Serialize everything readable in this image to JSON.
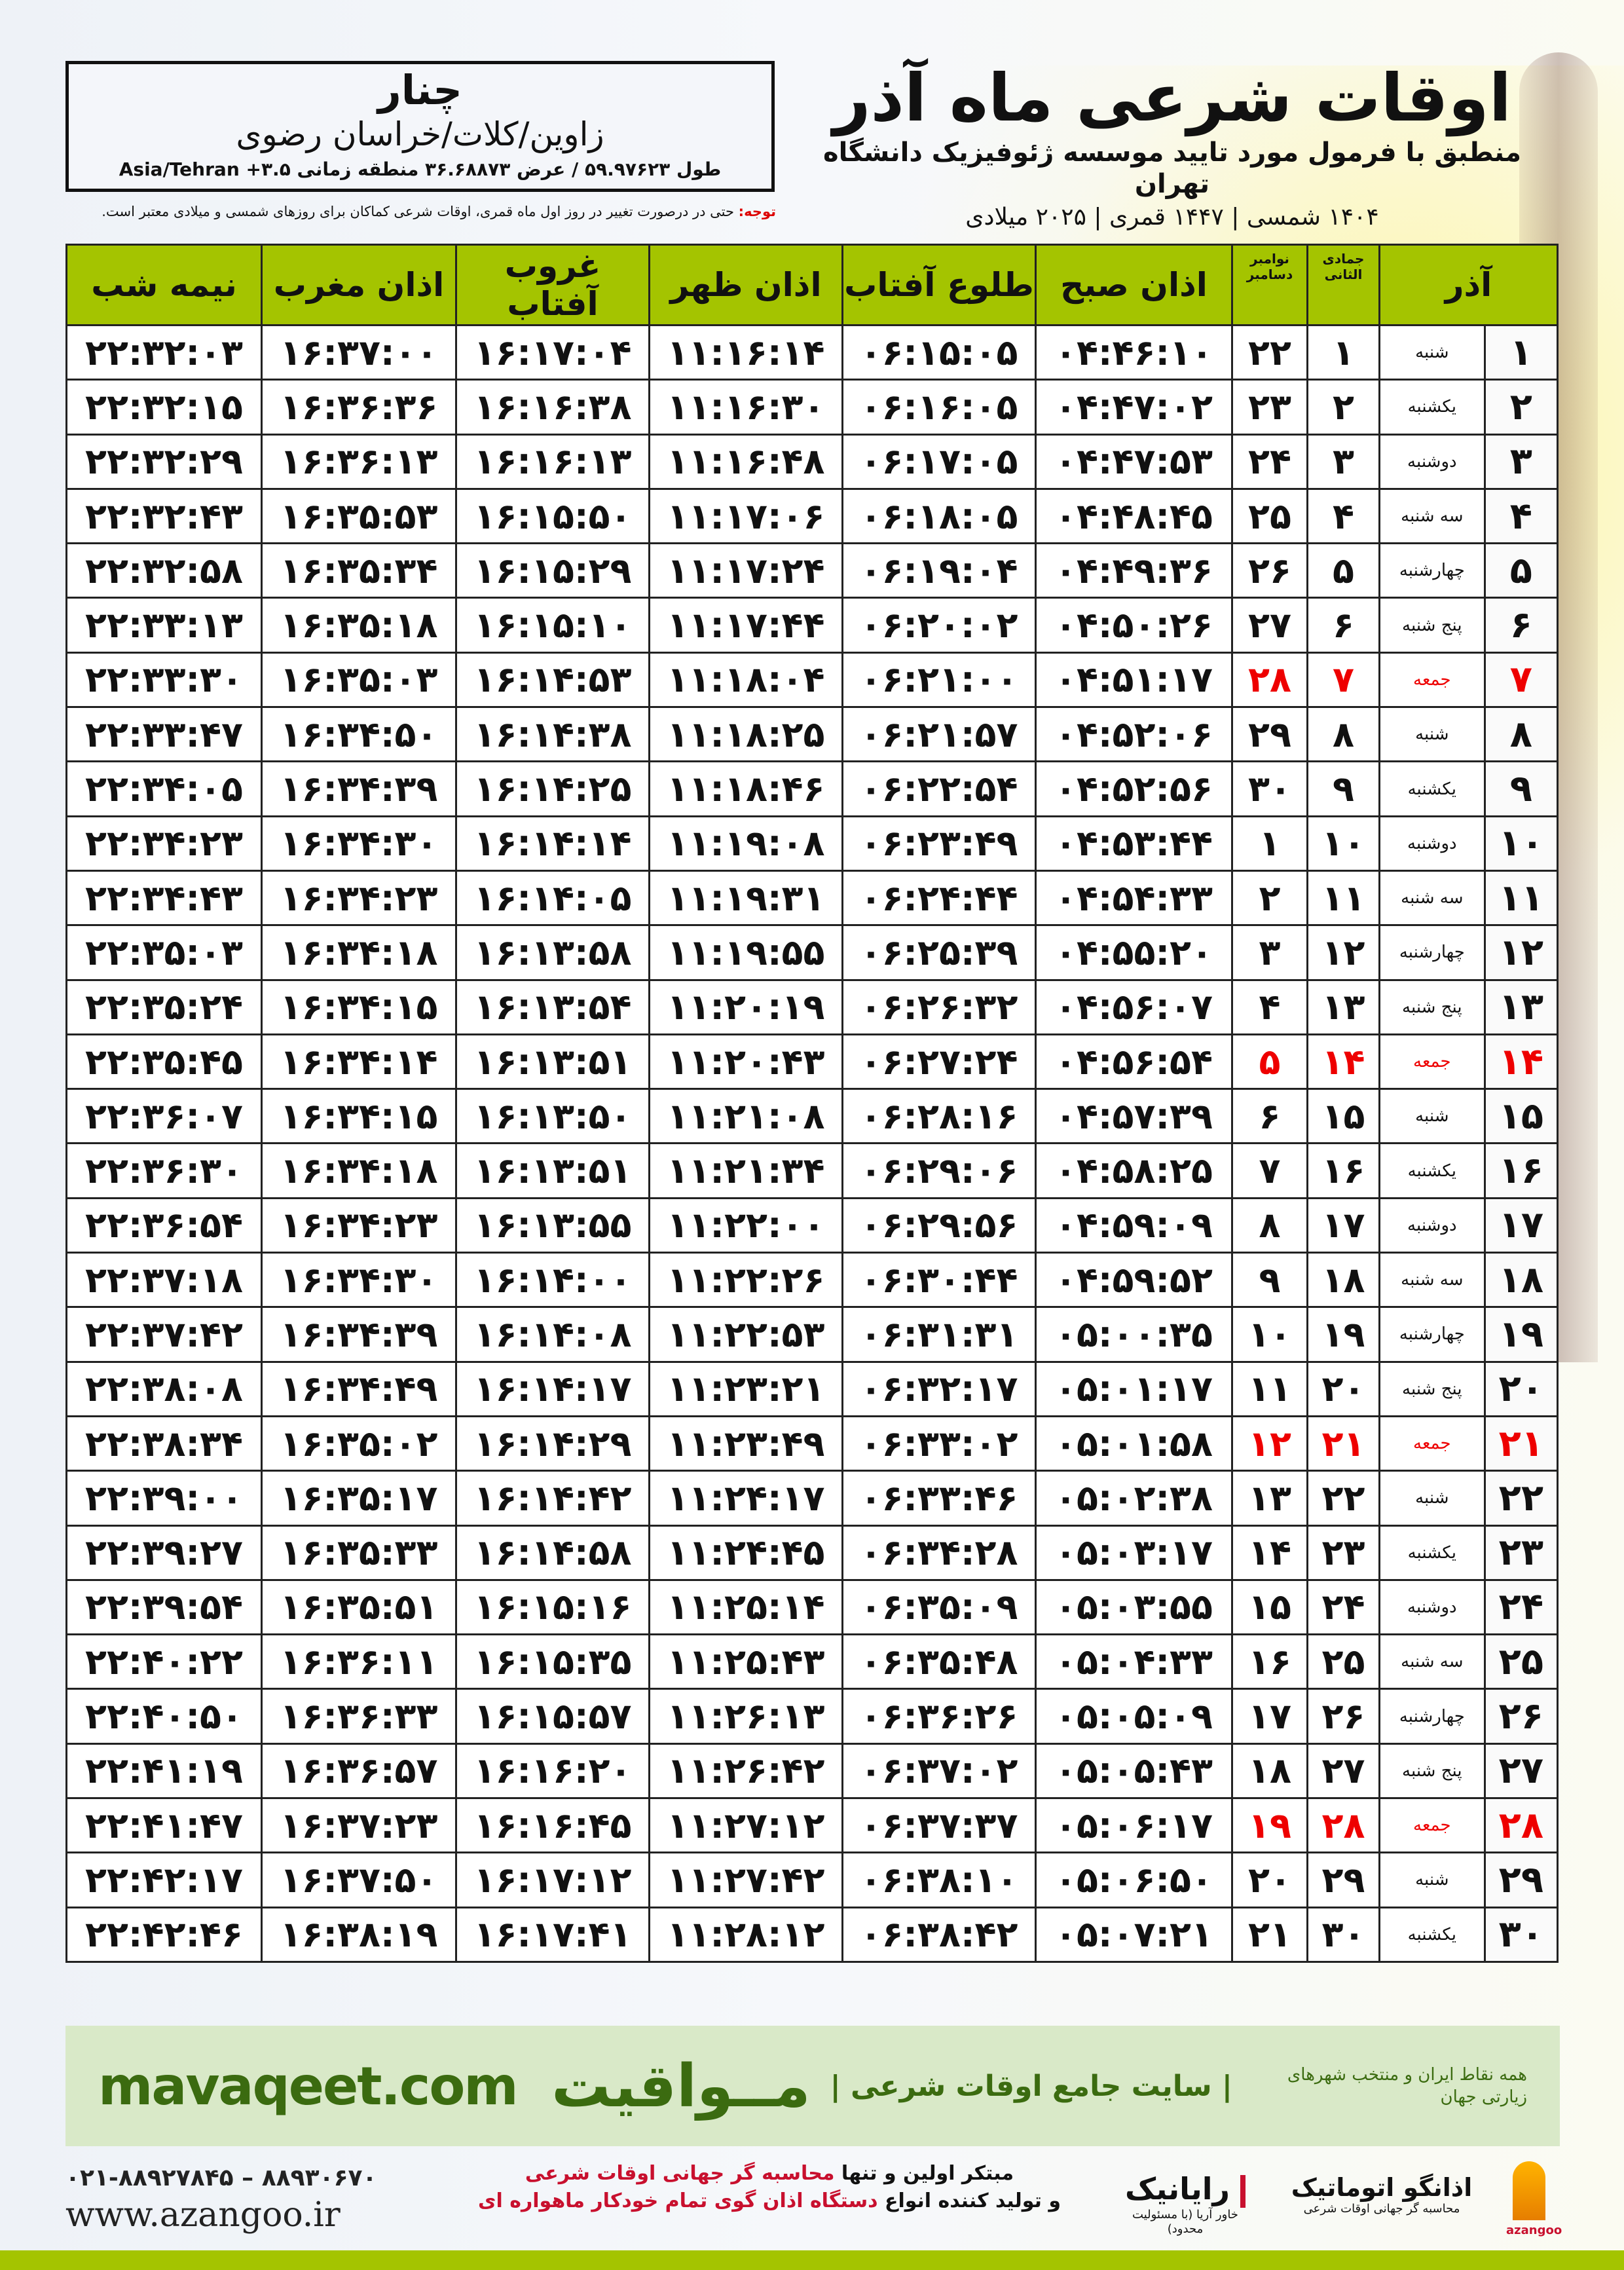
{
  "location": {
    "city": "چنار",
    "region": "زاوین/کلات/خراسان رضوی",
    "coords": "طول ۵۹.۹۷۶۲۳ / عرض ۳۶.۶۸۸۷۳ منطقه زمانی ۳.۵+ Asia/Tehran"
  },
  "header": {
    "title": "اوقات شرعی ماه آذر",
    "subtitle": "منطبق با فرمول مورد تایید موسسه ژئوفیزیک دانشگاه تهران",
    "years": "۱۴۰۴ شمسی | ۱۴۴۷ قمری | ۲۰۲۵ میلادی"
  },
  "note": {
    "label": "توجه:",
    "text": " حتی در درصورت تغییر در روز اول ماه قمری، اوقات شرعی کماکان برای روزهای شمسی و میلادی معتبر است."
  },
  "columns": {
    "month": "آذر",
    "hijri": "جمادی الثانی",
    "gregorian": "نوامبر دسامبر",
    "fajr": "اذان صبح",
    "sunrise": "طلوع آفتاب",
    "dhuhr": "اذان ظهر",
    "sunset": "غروب آفتاب",
    "maghrib": "اذان مغرب",
    "midnight": "نیمه شب"
  },
  "colors": {
    "header": "#a4c400",
    "holiday": "#e00000",
    "footer": "#d9e9c8",
    "brand": "#3b6b10"
  },
  "rows": [
    [
      "۱",
      "شنبه",
      "۱",
      "۲۲",
      "۰۴:۴۶:۱۰",
      "۰۶:۱۵:۰۵",
      "۱۱:۱۶:۱۴",
      "۱۶:۱۷:۰۴",
      "۱۶:۳۷:۰۰",
      "۲۲:۳۲:۰۳"
    ],
    [
      "۲",
      "یکشنبه",
      "۲",
      "۲۳",
      "۰۴:۴۷:۰۲",
      "۰۶:۱۶:۰۵",
      "۱۱:۱۶:۳۰",
      "۱۶:۱۶:۳۸",
      "۱۶:۳۶:۳۶",
      "۲۲:۳۲:۱۵"
    ],
    [
      "۳",
      "دوشنبه",
      "۳",
      "۲۴",
      "۰۴:۴۷:۵۳",
      "۰۶:۱۷:۰۵",
      "۱۱:۱۶:۴۸",
      "۱۶:۱۶:۱۳",
      "۱۶:۳۶:۱۳",
      "۲۲:۳۲:۲۹"
    ],
    [
      "۴",
      "سه شنبه",
      "۴",
      "۲۵",
      "۰۴:۴۸:۴۵",
      "۰۶:۱۸:۰۵",
      "۱۱:۱۷:۰۶",
      "۱۶:۱۵:۵۰",
      "۱۶:۳۵:۵۳",
      "۲۲:۳۲:۴۳"
    ],
    [
      "۵",
      "چهارشنبه",
      "۵",
      "۲۶",
      "۰۴:۴۹:۳۶",
      "۰۶:۱۹:۰۴",
      "۱۱:۱۷:۲۴",
      "۱۶:۱۵:۲۹",
      "۱۶:۳۵:۳۴",
      "۲۲:۳۲:۵۸"
    ],
    [
      "۶",
      "پنج شنبه",
      "۶",
      "۲۷",
      "۰۴:۵۰:۲۶",
      "۰۶:۲۰:۰۲",
      "۱۱:۱۷:۴۴",
      "۱۶:۱۵:۱۰",
      "۱۶:۳۵:۱۸",
      "۲۲:۳۳:۱۳"
    ],
    [
      "۷",
      "جمعه",
      "۷",
      "۲۸",
      "۰۴:۵۱:۱۷",
      "۰۶:۲۱:۰۰",
      "۱۱:۱۸:۰۴",
      "۱۶:۱۴:۵۳",
      "۱۶:۳۵:۰۳",
      "۲۲:۳۳:۳۰"
    ],
    [
      "۸",
      "شنبه",
      "۸",
      "۲۹",
      "۰۴:۵۲:۰۶",
      "۰۶:۲۱:۵۷",
      "۱۱:۱۸:۲۵",
      "۱۶:۱۴:۳۸",
      "۱۶:۳۴:۵۰",
      "۲۲:۳۳:۴۷"
    ],
    [
      "۹",
      "یکشنبه",
      "۹",
      "۳۰",
      "۰۴:۵۲:۵۶",
      "۰۶:۲۲:۵۴",
      "۱۱:۱۸:۴۶",
      "۱۶:۱۴:۲۵",
      "۱۶:۳۴:۳۹",
      "۲۲:۳۴:۰۵"
    ],
    [
      "۱۰",
      "دوشنبه",
      "۱۰",
      "۱",
      "۰۴:۵۳:۴۴",
      "۰۶:۲۳:۴۹",
      "۱۱:۱۹:۰۸",
      "۱۶:۱۴:۱۴",
      "۱۶:۳۴:۳۰",
      "۲۲:۳۴:۲۳"
    ],
    [
      "۱۱",
      "سه شنبه",
      "۱۱",
      "۲",
      "۰۴:۵۴:۳۳",
      "۰۶:۲۴:۴۴",
      "۱۱:۱۹:۳۱",
      "۱۶:۱۴:۰۵",
      "۱۶:۳۴:۲۳",
      "۲۲:۳۴:۴۳"
    ],
    [
      "۱۲",
      "چهارشنبه",
      "۱۲",
      "۳",
      "۰۴:۵۵:۲۰",
      "۰۶:۲۵:۳۹",
      "۱۱:۱۹:۵۵",
      "۱۶:۱۳:۵۸",
      "۱۶:۳۴:۱۸",
      "۲۲:۳۵:۰۳"
    ],
    [
      "۱۳",
      "پنج شنبه",
      "۱۳",
      "۴",
      "۰۴:۵۶:۰۷",
      "۰۶:۲۶:۳۲",
      "۱۱:۲۰:۱۹",
      "۱۶:۱۳:۵۴",
      "۱۶:۳۴:۱۵",
      "۲۲:۳۵:۲۴"
    ],
    [
      "۱۴",
      "جمعه",
      "۱۴",
      "۵",
      "۰۴:۵۶:۵۴",
      "۰۶:۲۷:۲۴",
      "۱۱:۲۰:۴۳",
      "۱۶:۱۳:۵۱",
      "۱۶:۳۴:۱۴",
      "۲۲:۳۵:۴۵"
    ],
    [
      "۱۵",
      "شنبه",
      "۱۵",
      "۶",
      "۰۴:۵۷:۳۹",
      "۰۶:۲۸:۱۶",
      "۱۱:۲۱:۰۸",
      "۱۶:۱۳:۵۰",
      "۱۶:۳۴:۱۵",
      "۲۲:۳۶:۰۷"
    ],
    [
      "۱۶",
      "یکشنبه",
      "۱۶",
      "۷",
      "۰۴:۵۸:۲۵",
      "۰۶:۲۹:۰۶",
      "۱۱:۲۱:۳۴",
      "۱۶:۱۳:۵۱",
      "۱۶:۳۴:۱۸",
      "۲۲:۳۶:۳۰"
    ],
    [
      "۱۷",
      "دوشنبه",
      "۱۷",
      "۸",
      "۰۴:۵۹:۰۹",
      "۰۶:۲۹:۵۶",
      "۱۱:۲۲:۰۰",
      "۱۶:۱۳:۵۵",
      "۱۶:۳۴:۲۳",
      "۲۲:۳۶:۵۴"
    ],
    [
      "۱۸",
      "سه شنبه",
      "۱۸",
      "۹",
      "۰۴:۵۹:۵۲",
      "۰۶:۳۰:۴۴",
      "۱۱:۲۲:۲۶",
      "۱۶:۱۴:۰۰",
      "۱۶:۳۴:۳۰",
      "۲۲:۳۷:۱۸"
    ],
    [
      "۱۹",
      "چهارشنبه",
      "۱۹",
      "۱۰",
      "۰۵:۰۰:۳۵",
      "۰۶:۳۱:۳۱",
      "۱۱:۲۲:۵۳",
      "۱۶:۱۴:۰۸",
      "۱۶:۳۴:۳۹",
      "۲۲:۳۷:۴۲"
    ],
    [
      "۲۰",
      "پنج شنبه",
      "۲۰",
      "۱۱",
      "۰۵:۰۱:۱۷",
      "۰۶:۳۲:۱۷",
      "۱۱:۲۳:۲۱",
      "۱۶:۱۴:۱۷",
      "۱۶:۳۴:۴۹",
      "۲۲:۳۸:۰۸"
    ],
    [
      "۲۱",
      "جمعه",
      "۲۱",
      "۱۲",
      "۰۵:۰۱:۵۸",
      "۰۶:۳۳:۰۲",
      "۱۱:۲۳:۴۹",
      "۱۶:۱۴:۲۹",
      "۱۶:۳۵:۰۲",
      "۲۲:۳۸:۳۴"
    ],
    [
      "۲۲",
      "شنبه",
      "۲۲",
      "۱۳",
      "۰۵:۰۲:۳۸",
      "۰۶:۳۳:۴۶",
      "۱۱:۲۴:۱۷",
      "۱۶:۱۴:۴۲",
      "۱۶:۳۵:۱۷",
      "۲۲:۳۹:۰۰"
    ],
    [
      "۲۳",
      "یکشنبه",
      "۲۳",
      "۱۴",
      "۰۵:۰۳:۱۷",
      "۰۶:۳۴:۲۸",
      "۱۱:۲۴:۴۵",
      "۱۶:۱۴:۵۸",
      "۱۶:۳۵:۳۳",
      "۲۲:۳۹:۲۷"
    ],
    [
      "۲۴",
      "دوشنبه",
      "۲۴",
      "۱۵",
      "۰۵:۰۳:۵۵",
      "۰۶:۳۵:۰۹",
      "۱۱:۲۵:۱۴",
      "۱۶:۱۵:۱۶",
      "۱۶:۳۵:۵۱",
      "۲۲:۳۹:۵۴"
    ],
    [
      "۲۵",
      "سه شنبه",
      "۲۵",
      "۱۶",
      "۰۵:۰۴:۳۳",
      "۰۶:۳۵:۴۸",
      "۱۱:۲۵:۴۳",
      "۱۶:۱۵:۳۵",
      "۱۶:۳۶:۱۱",
      "۲۲:۴۰:۲۲"
    ],
    [
      "۲۶",
      "چهارشنبه",
      "۲۶",
      "۱۷",
      "۰۵:۰۵:۰۹",
      "۰۶:۳۶:۲۶",
      "۱۱:۲۶:۱۳",
      "۱۶:۱۵:۵۷",
      "۱۶:۳۶:۳۳",
      "۲۲:۴۰:۵۰"
    ],
    [
      "۲۷",
      "پنج شنبه",
      "۲۷",
      "۱۸",
      "۰۵:۰۵:۴۳",
      "۰۶:۳۷:۰۲",
      "۱۱:۲۶:۴۲",
      "۱۶:۱۶:۲۰",
      "۱۶:۳۶:۵۷",
      "۲۲:۴۱:۱۹"
    ],
    [
      "۲۸",
      "جمعه",
      "۲۸",
      "۱۹",
      "۰۵:۰۶:۱۷",
      "۰۶:۳۷:۳۷",
      "۱۱:۲۷:۱۲",
      "۱۶:۱۶:۴۵",
      "۱۶:۳۷:۲۳",
      "۲۲:۴۱:۴۷"
    ],
    [
      "۲۹",
      "شنبه",
      "۲۹",
      "۲۰",
      "۰۵:۰۶:۵۰",
      "۰۶:۳۸:۱۰",
      "۱۱:۲۷:۴۲",
      "۱۶:۱۷:۱۲",
      "۱۶:۳۷:۵۰",
      "۲۲:۴۲:۱۷"
    ],
    [
      "۳۰",
      "یکشنبه",
      "۳۰",
      "۲۱",
      "۰۵:۰۷:۲۱",
      "۰۶:۳۸:۴۲",
      "۱۱:۲۸:۱۲",
      "۱۶:۱۷:۴۱",
      "۱۶:۳۸:۱۹",
      "۲۲:۴۲:۴۶"
    ]
  ],
  "holiday_rows": [
    6,
    13,
    20,
    27
  ],
  "footer": {
    "brand": "مــواقیت",
    "tagline": "| سایت جامع اوقات شرعی |",
    "small": "همه نقاط ایران و منتخب شهرهای زیارتی جهان",
    "site": "mavaqeet.com"
  },
  "ads": {
    "phone": "۰۲۱-۸۸۹۲۷۸۴۵ – ۸۸۹۳۰۶۷۰",
    "web": "www.azangoo.ir",
    "line1_a": "مبتکر اولین و تنها ",
    "line1_b": "محاسبه گر جهانی اوقات شرعی",
    "line2_a": "و تولید کننده انواع ",
    "line2_b": "دستگاه اذان گوی تمام خودکار ماهواره ای",
    "logo_rayanik": "رایانیک",
    "logo_rayanik_sub": "خاور آریا (با مسئولیت محدود)",
    "logo_azangoo": "اذانگو اتوماتیک",
    "logo_azangoo_sub": "محاسبه گر جهانی اوقات شرعی",
    "logo_azangoo_en": "azangoo"
  }
}
